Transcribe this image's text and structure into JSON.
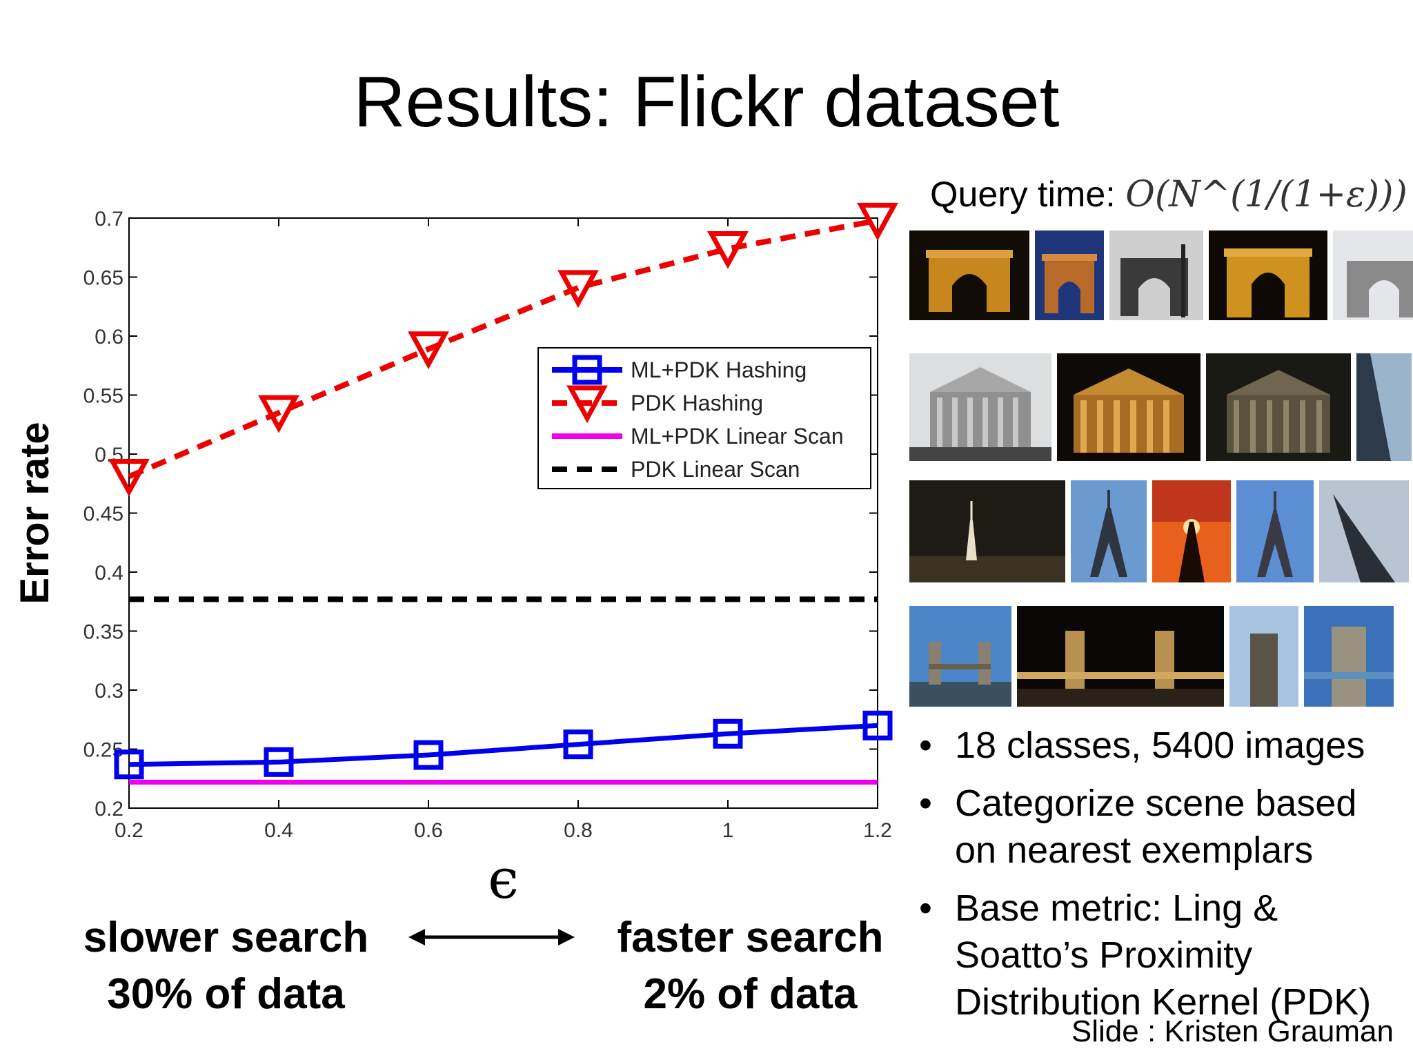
{
  "slide": {
    "title": "Results: Flickr dataset",
    "credit": "Slide : Kristen Grauman"
  },
  "notes": {
    "left_line1": "slower search",
    "left_line2": "30% of data",
    "right_line1": "faster search",
    "right_line2": "2% of data",
    "arrow_icon": "double-arrow-icon"
  },
  "query_time": {
    "label": "Query time:",
    "formula": "O(N^(1/(1+ε)))"
  },
  "bullets": [
    "18 classes, 5400 images",
    "Categorize scene based on nearest exemplars",
    "Base metric: Ling & Soatto’s Proximity Distribution Kernel (PDK)"
  ],
  "photos": [
    [
      "arc-de-triomphe-photo",
      "arc-de-triomphe-photo",
      "arc-de-triomphe-photo",
      "arc-de-triomphe-photo",
      "arc-de-triomphe-photo"
    ],
    [
      "pantheon-photo",
      "pantheon-photo",
      "pantheon-photo",
      "pantheon-photo"
    ],
    [
      "eiffel-tower-photo",
      "eiffel-tower-photo",
      "eiffel-tower-photo",
      "eiffel-tower-photo",
      "eiffel-tower-photo"
    ],
    [
      "tower-bridge-photo",
      "tower-bridge-photo",
      "tower-bridge-photo",
      "tower-bridge-photo"
    ]
  ],
  "chart_data": {
    "type": "line",
    "title": "",
    "xlabel": "ϵ",
    "ylabel": "Error rate",
    "xlim": [
      0.2,
      1.2
    ],
    "ylim": [
      0.2,
      0.7
    ],
    "xticks": [
      "0.2",
      "0.4",
      "0.6",
      "0.8",
      "1",
      "1.2"
    ],
    "yticks": [
      "0.2",
      "0.25",
      "0.3",
      "0.35",
      "0.4",
      "0.45",
      "0.5",
      "0.55",
      "0.6",
      "0.65",
      "0.7"
    ],
    "x": [
      0.2,
      0.4,
      0.6,
      0.8,
      1.0,
      1.2
    ],
    "legend_position": "center-right",
    "grid": false,
    "series": [
      {
        "name": "ML+PDK Hashing",
        "color": "#0000ee",
        "style": "solid",
        "marker": "square",
        "values": [
          0.237,
          0.239,
          0.245,
          0.254,
          0.263,
          0.27
        ]
      },
      {
        "name": "PDK Hashing",
        "color": "#ee0000",
        "style": "dashed",
        "marker": "triangle-down",
        "values": [
          0.481,
          0.535,
          0.589,
          0.641,
          0.674,
          0.698
        ]
      },
      {
        "name": "ML+PDK Linear Scan",
        "color": "#ee00ee",
        "style": "solid",
        "marker": "none",
        "values": [
          0.222,
          0.222,
          0.222,
          0.222,
          0.222,
          0.222
        ]
      },
      {
        "name": "PDK Linear Scan",
        "color": "#000000",
        "style": "dashed",
        "marker": "none",
        "values": [
          0.377,
          0.377,
          0.377,
          0.377,
          0.377,
          0.377
        ]
      }
    ]
  }
}
